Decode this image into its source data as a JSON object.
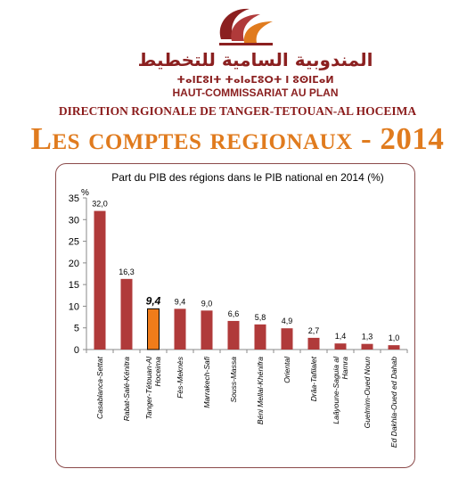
{
  "header": {
    "arabic_name": "المندوبية السامية للتخطيط",
    "tifinagh_name": "ⵜⴰⵏⵎⵓⵏⵜ ⵜⴰⵏⴰⵎⵓⵔⵜ ⵏ ⵓⵙⵏⵎⴰⵍ",
    "french_name": "HAUT-COMMISSARIAT AU PLAN",
    "direction": "DIRECTION RGIONALE DE TANGER-TETOUAN-AL HOCEIMA",
    "main_title": "Les comptes regionaux - 2014"
  },
  "colors": {
    "brand": "#8b2020",
    "title_orange": "#e07b1e",
    "bar": "#b03a3a",
    "highlight_bar": "#f07c1a"
  },
  "chart_data": {
    "type": "bar",
    "title": "Part du PIB des régions dans le PIB national en 2014 (%)",
    "ylabel": "%",
    "xlabel": "",
    "ylim": [
      0,
      35
    ],
    "yticks": [
      0,
      5,
      10,
      15,
      20,
      25,
      30,
      35
    ],
    "grid": false,
    "categories": [
      "Casablanca-Settat",
      "Rabat-Salé-Kénitra",
      "Tanger-Tétouan-Al Hoceima",
      "Fès-Meknès",
      "Marrakech-Safi",
      "Souss-Massa",
      "Béni Mellal-Khénifra",
      "Oriental",
      "Drâa-Tafilalet",
      "Laâyoune-Saguia al Hamra",
      "Guelmim-Oued Noun",
      "Ed Dakhla-Oued ed Dahab"
    ],
    "category_lines": [
      [
        "Casablanca-Settat"
      ],
      [
        "Rabat-Salé-Kénitra"
      ],
      [
        "Tanger-Tétouan-Al",
        "Hoceima"
      ],
      [
        "Fès-Meknès"
      ],
      [
        "Marrakech-Safi"
      ],
      [
        "Souss-Massa"
      ],
      [
        "Béni Mellal-Khénifra"
      ],
      [
        "Oriental"
      ],
      [
        "Drâa-Tafilalet"
      ],
      [
        "Laâyoune-Saguia al",
        "Hamra"
      ],
      [
        "Guelmim-Oued Noun"
      ],
      [
        "Ed Dakhla-Oued ed Dahab"
      ]
    ],
    "values": [
      32.0,
      16.3,
      9.4,
      9.4,
      9.0,
      6.6,
      5.8,
      4.9,
      2.7,
      1.4,
      1.3,
      1.0
    ],
    "value_labels": [
      "32,0",
      "16,3",
      "9,4",
      "9,4",
      "9,0",
      "6,6",
      "5,8",
      "4,9",
      "2,7",
      "1,4",
      "1,3",
      "1,0"
    ],
    "highlight_index": 2
  }
}
